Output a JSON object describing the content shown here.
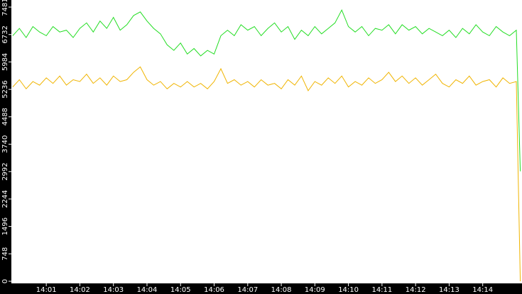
{
  "chart_data": {
    "type": "line",
    "x": [
      0,
      0.2,
      0.4,
      0.6,
      0.8,
      1,
      1.2,
      1.4,
      1.6,
      1.8,
      2,
      2.2,
      2.4,
      2.6,
      2.8,
      3,
      3.2,
      3.4,
      3.6,
      3.8,
      4,
      4.2,
      4.4,
      4.6,
      4.8,
      5,
      5.2,
      5.4,
      5.6,
      5.8,
      6,
      6.2,
      6.4,
      6.6,
      6.8,
      7,
      7.2,
      7.4,
      7.6,
      7.8,
      8,
      8.2,
      8.4,
      8.6,
      8.8,
      9,
      9.2,
      9.4,
      9.6,
      9.8,
      10,
      10.2,
      10.4,
      10.6,
      10.8,
      11,
      11.2,
      11.4,
      11.6,
      11.8,
      12,
      12.2,
      12.4,
      12.6,
      12.8,
      13,
      13.2,
      13.4,
      13.6,
      13.8,
      14,
      14.2,
      14.4,
      14.6,
      14.8,
      15,
      15.12
    ],
    "series": [
      {
        "color": "#22dd22",
        "values": [
          6700,
          6900,
          6650,
          6950,
          6800,
          6700,
          6950,
          6800,
          6850,
          6650,
          6900,
          7050,
          6800,
          7100,
          6900,
          7200,
          6850,
          7000,
          7250,
          7350,
          7100,
          6900,
          6750,
          6450,
          6300,
          6500,
          6200,
          6350,
          6150,
          6300,
          6200,
          6700,
          6850,
          6700,
          7000,
          6850,
          6950,
          6700,
          6900,
          7050,
          6800,
          6950,
          6600,
          6850,
          6700,
          6950,
          6750,
          6900,
          7050,
          7400,
          6950,
          6800,
          6950,
          6700,
          6900,
          6850,
          7000,
          6750,
          7000,
          6850,
          6950,
          6750,
          6900,
          6800,
          6700,
          6850,
          6650,
          6900,
          6750,
          7000,
          6800,
          6700,
          6950,
          6800,
          6700,
          6850,
          3000
        ]
      },
      {
        "color": "#f0b400",
        "values": [
          5300,
          5500,
          5250,
          5450,
          5350,
          5550,
          5400,
          5600,
          5350,
          5500,
          5450,
          5650,
          5400,
          5550,
          5350,
          5600,
          5450,
          5500,
          5700,
          5850,
          5500,
          5350,
          5450,
          5250,
          5400,
          5300,
          5450,
          5300,
          5400,
          5250,
          5450,
          5800,
          5400,
          5500,
          5350,
          5450,
          5300,
          5500,
          5350,
          5400,
          5250,
          5500,
          5350,
          5600,
          5200,
          5450,
          5350,
          5550,
          5400,
          5600,
          5300,
          5450,
          5350,
          5550,
          5400,
          5500,
          5700,
          5450,
          5600,
          5400,
          5550,
          5350,
          5500,
          5650,
          5400,
          5300,
          5500,
          5400,
          5600,
          5350,
          5450,
          5500,
          5300,
          5550,
          5400,
          5450,
          0
        ]
      }
    ],
    "xlim": [
      -0.04,
      15.17
    ],
    "xticks": [
      {
        "value": 1,
        "label": "14:01"
      },
      {
        "value": 2,
        "label": "14:02"
      },
      {
        "value": 3,
        "label": "14:03"
      },
      {
        "value": 4,
        "label": "14:04"
      },
      {
        "value": 5,
        "label": "14:05"
      },
      {
        "value": 6,
        "label": "14:06"
      },
      {
        "value": 7,
        "label": "14:07"
      },
      {
        "value": 8,
        "label": "14:08"
      },
      {
        "value": 9,
        "label": "14:09"
      },
      {
        "value": 10,
        "label": "14:10"
      },
      {
        "value": 11,
        "label": "14:11"
      },
      {
        "value": 12,
        "label": "14:12"
      },
      {
        "value": 13,
        "label": "14:13"
      },
      {
        "value": 14,
        "label": "14:14"
      }
    ],
    "ylim": [
      0,
      7481
    ],
    "yticks": [
      0,
      748,
      1496,
      2244,
      2992,
      3740,
      4488,
      5236,
      5984,
      6732,
      7481
    ]
  }
}
